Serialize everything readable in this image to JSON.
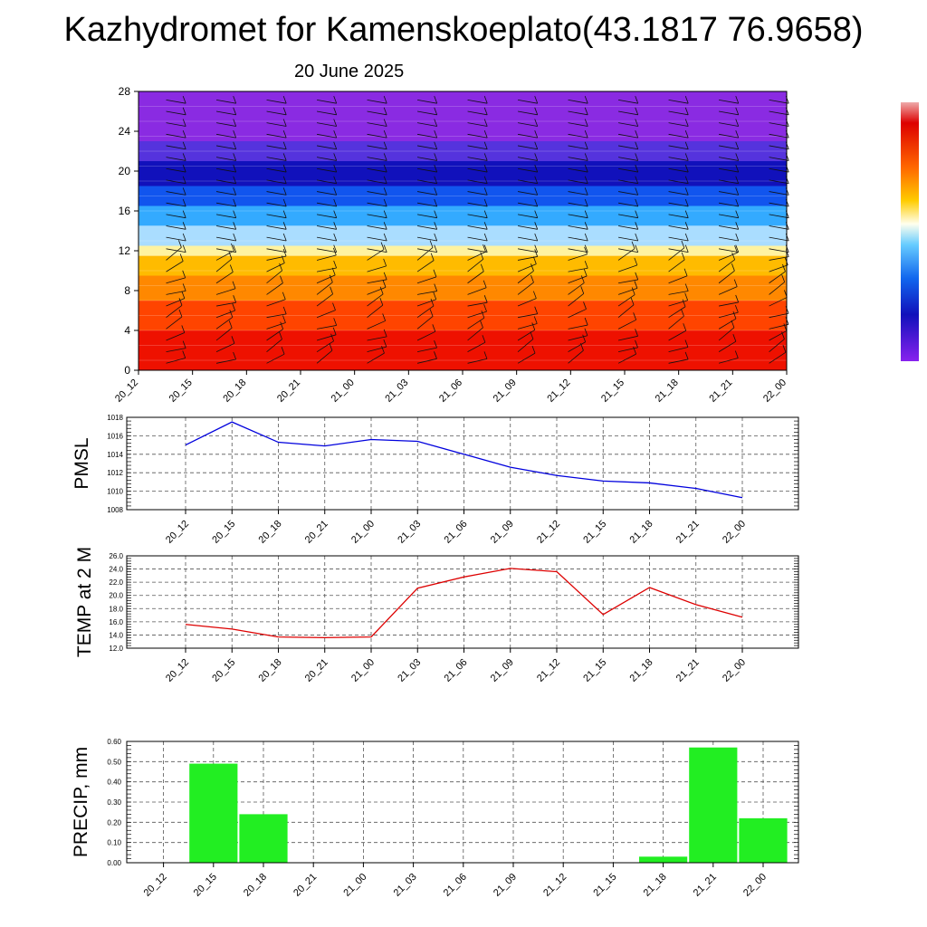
{
  "header": {
    "title": "Kazhydromet for Kamenskoeplato(43.1817 76.9658)",
    "date": "20 June 2025"
  },
  "colors": {
    "pmsl_line": "#0000dd",
    "temp_line": "#dd0000",
    "precip_bar": "#22ee22",
    "grid": "#555555"
  },
  "chart_data": [
    {
      "type": "heatmap",
      "panel": "cross-section",
      "xticks": [
        "20_12",
        "20_15",
        "20_18",
        "20_21",
        "21_00",
        "21_03",
        "21_06",
        "21_09",
        "21_12",
        "21_15",
        "21_18",
        "21_21",
        "22_00"
      ],
      "yticks": [
        "0",
        "4",
        "8",
        "12",
        "16",
        "20",
        "24",
        "28"
      ],
      "ylim": [
        0,
        28
      ],
      "colorscale_top_to_bottom": [
        "#cc0000",
        "#ee2200",
        "#ff5500",
        "#ff8800",
        "#ffbb00",
        "#ffee66",
        "#ffffff",
        "#99ddff",
        "#33aaff",
        "#0066ee",
        "#2222cc",
        "#5522dd",
        "#8822ee"
      ],
      "bands": [
        {
          "from": 0,
          "to": 4,
          "color": "#ee1100"
        },
        {
          "from": 4,
          "to": 7,
          "color": "#ff4400"
        },
        {
          "from": 7,
          "to": 9.5,
          "color": "#ff8800"
        },
        {
          "from": 9.5,
          "to": 11.5,
          "color": "#ffbb00"
        },
        {
          "from": 11.5,
          "to": 12.5,
          "color": "#fff3a0"
        },
        {
          "from": 12.5,
          "to": 14.5,
          "color": "#aaddff"
        },
        {
          "from": 14.5,
          "to": 16.5,
          "color": "#33aaff"
        },
        {
          "from": 16.5,
          "to": 18.5,
          "color": "#1155ee"
        },
        {
          "from": 18.5,
          "to": 21,
          "color": "#1111bb"
        },
        {
          "from": 21,
          "to": 23,
          "color": "#5533dd"
        },
        {
          "from": 23,
          "to": 28,
          "color": "#8a2be2"
        }
      ]
    },
    {
      "type": "line",
      "ylabel": "PMSL",
      "categories": [
        "20_12",
        "20_15",
        "20_18",
        "20_21",
        "21_00",
        "21_03",
        "21_06",
        "21_09",
        "21_12",
        "21_15",
        "21_18",
        "21_21",
        "22_00"
      ],
      "values": [
        1015.0,
        1017.5,
        1015.3,
        1014.9,
        1015.6,
        1015.4,
        1014.0,
        1012.6,
        1011.7,
        1011.1,
        1010.9,
        1010.3,
        1009.3
      ],
      "ylim": [
        1008,
        1018
      ],
      "yticks": [
        "1008",
        "1010",
        "1012",
        "1014",
        "1016",
        "1018"
      ],
      "yticks_values": [
        1008,
        1010,
        1012,
        1014,
        1016,
        1018
      ]
    },
    {
      "type": "line",
      "ylabel": "TEMP at 2 M",
      "categories": [
        "20_12",
        "20_15",
        "20_18",
        "20_21",
        "21_00",
        "21_03",
        "21_06",
        "21_09",
        "21_12",
        "21_15",
        "21_18",
        "21_21",
        "22_00"
      ],
      "values": [
        15.6,
        14.9,
        13.7,
        13.6,
        13.7,
        21.1,
        22.8,
        24.1,
        23.6,
        17.1,
        21.2,
        18.6,
        16.7
      ],
      "ylim": [
        12,
        26
      ],
      "yticks": [
        "12.0",
        "14.0",
        "16.0",
        "18.0",
        "20.0",
        "22.0",
        "24.0",
        "26.0"
      ],
      "yticks_values": [
        12,
        14,
        16,
        18,
        20,
        22,
        24,
        26
      ]
    },
    {
      "type": "bar",
      "ylabel": "PRECIP, mm",
      "categories": [
        "20_12",
        "20_15",
        "20_18",
        "20_21",
        "21_00",
        "21_03",
        "21_06",
        "21_09",
        "21_12",
        "21_15",
        "21_18",
        "21_21",
        "22_00"
      ],
      "values": [
        0,
        0.49,
        0.24,
        0,
        0,
        0,
        0,
        0,
        0,
        0,
        0.03,
        0.57,
        0.22
      ],
      "ylim": [
        0,
        0.6
      ],
      "yticks": [
        "0.00",
        "0.10",
        "0.20",
        "0.30",
        "0.40",
        "0.50",
        "0.60"
      ],
      "yticks_values": [
        0,
        0.1,
        0.2,
        0.3,
        0.4,
        0.5,
        0.6
      ]
    }
  ]
}
